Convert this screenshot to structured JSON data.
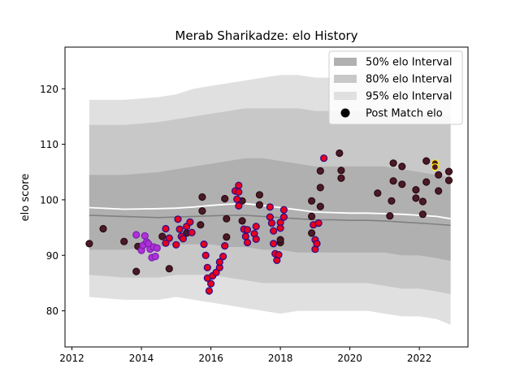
{
  "chart_data": {
    "type": "scatter",
    "title": "Merab Sharikadze: elo History",
    "xlabel": "",
    "ylabel": "elo score",
    "xlim": [
      2011.8,
      2023.4
    ],
    "ylim": [
      73.5,
      127.5
    ],
    "x_ticks": [
      2012,
      2014,
      2016,
      2018,
      2020,
      2022
    ],
    "x_tick_labels": [
      "2012",
      "2014",
      "2016",
      "2018",
      "2020",
      "2022"
    ],
    "y_ticks": [
      80,
      90,
      100,
      110,
      120
    ],
    "y_tick_labels": [
      "80",
      "90",
      "100",
      "110",
      "120"
    ],
    "legend": {
      "position": "top-right",
      "items": [
        {
          "label": "50% elo Interval",
          "kind": "patch",
          "color": "#b0b0b0"
        },
        {
          "label": "80% elo Interval",
          "kind": "patch",
          "color": "#c8c8c8"
        },
        {
          "label": "95% elo Interval",
          "kind": "patch",
          "color": "#e0e0e0"
        },
        {
          "label": "Post Match elo",
          "kind": "marker",
          "color": "#000000"
        }
      ]
    },
    "bands": {
      "x": [
        2012.5,
        2013.5,
        2014.5,
        2015.0,
        2015.5,
        2016.0,
        2016.5,
        2017.0,
        2017.5,
        2018.0,
        2018.5,
        2019.0,
        2019.5,
        2020.0,
        2020.5,
        2021.0,
        2021.5,
        2022.0,
        2022.5,
        2022.9
      ],
      "p95_low": [
        82.5,
        82.0,
        82.0,
        82.5,
        82.0,
        81.5,
        81.0,
        80.5,
        80.0,
        79.5,
        80.0,
        80.0,
        80.0,
        80.0,
        80.0,
        79.5,
        79.0,
        79.0,
        78.5,
        77.5
      ],
      "p95_high": [
        118.0,
        118.0,
        118.5,
        119.0,
        120.0,
        120.5,
        121.0,
        121.5,
        122.0,
        122.5,
        122.5,
        122.0,
        122.0,
        122.0,
        122.0,
        122.5,
        123.0,
        123.0,
        123.0,
        123.0
      ],
      "p80_low": [
        86.5,
        86.0,
        86.0,
        86.5,
        86.5,
        86.5,
        86.0,
        85.5,
        85.0,
        85.0,
        85.0,
        85.0,
        85.0,
        85.0,
        85.0,
        84.5,
        84.0,
        84.0,
        83.5,
        83.0
      ],
      "p80_high": [
        113.5,
        113.5,
        114.0,
        114.5,
        115.0,
        115.5,
        116.0,
        116.5,
        116.5,
        116.5,
        116.5,
        116.0,
        116.0,
        116.0,
        116.0,
        116.0,
        116.0,
        115.5,
        115.5,
        115.0
      ],
      "p50_low": [
        91.0,
        91.0,
        91.5,
        92.0,
        92.0,
        92.0,
        91.5,
        91.5,
        91.0,
        91.0,
        90.5,
        90.5,
        90.5,
        90.5,
        90.5,
        90.5,
        90.0,
        90.0,
        89.5,
        89.0
      ],
      "p50_high": [
        104.5,
        104.5,
        105.0,
        105.5,
        106.0,
        106.5,
        107.0,
        107.5,
        107.5,
        107.0,
        106.5,
        106.0,
        106.0,
        106.0,
        106.0,
        106.0,
        105.5,
        105.0,
        104.5,
        104.0
      ],
      "median": [
        97.2,
        97.0,
        96.8,
        96.9,
        97.0,
        97.1,
        97.2,
        97.2,
        97.0,
        96.8,
        96.6,
        96.4,
        96.4,
        96.3,
        96.3,
        96.2,
        96.0,
        95.8,
        95.6,
        95.4
      ],
      "mean": [
        98.6,
        98.3,
        98.4,
        98.5,
        98.7,
        99.0,
        99.2,
        99.3,
        99.0,
        98.6,
        98.2,
        97.8,
        97.7,
        97.6,
        97.6,
        97.5,
        97.4,
        97.2,
        97.0,
        96.6
      ]
    },
    "series": [
      {
        "name": "Post Match elo (dark)",
        "fill": "#4a1a26",
        "stroke": "#2a0a12",
        "points": [
          [
            2012.5,
            92.1
          ],
          [
            2012.9,
            94.8
          ],
          [
            2013.5,
            92.5
          ],
          [
            2013.85,
            87.1
          ],
          [
            2013.9,
            91.6
          ],
          [
            2014.6,
            93.4
          ],
          [
            2014.8,
            87.6
          ],
          [
            2015.3,
            94.0
          ],
          [
            2015.7,
            95.5
          ],
          [
            2015.75,
            100.5
          ],
          [
            2015.75,
            98.0
          ],
          [
            2016.4,
            100.2
          ],
          [
            2016.45,
            96.6
          ],
          [
            2016.45,
            93.3
          ],
          [
            2016.9,
            99.8
          ],
          [
            2016.9,
            96.2
          ],
          [
            2017.4,
            100.9
          ],
          [
            2017.4,
            99.1
          ],
          [
            2018.0,
            92.3
          ],
          [
            2018.0,
            92.8
          ],
          [
            2018.9,
            99.8
          ],
          [
            2018.9,
            94.0
          ],
          [
            2018.9,
            97.0
          ],
          [
            2019.15,
            102.2
          ],
          [
            2019.15,
            98.8
          ],
          [
            2019.15,
            105.2
          ],
          [
            2019.7,
            108.4
          ],
          [
            2019.75,
            105.3
          ],
          [
            2019.75,
            103.9
          ],
          [
            2020.8,
            101.2
          ],
          [
            2021.15,
            97.1
          ],
          [
            2021.2,
            99.8
          ],
          [
            2021.25,
            103.4
          ],
          [
            2021.25,
            106.6
          ],
          [
            2021.5,
            106.0
          ],
          [
            2021.5,
            102.8
          ],
          [
            2021.9,
            101.8
          ],
          [
            2021.9,
            100.3
          ],
          [
            2022.1,
            99.7
          ],
          [
            2022.1,
            97.4
          ],
          [
            2022.2,
            103.2
          ],
          [
            2022.2,
            107.0
          ],
          [
            2022.55,
            104.5
          ],
          [
            2022.55,
            101.6
          ],
          [
            2022.85,
            105.1
          ],
          [
            2022.85,
            103.5
          ]
        ]
      },
      {
        "name": "Post Match elo (red)",
        "fill": "#e8001c",
        "stroke": "#2a0a8a",
        "points": [
          [
            2014.7,
            94.8
          ],
          [
            2014.7,
            92.2
          ],
          [
            2014.8,
            93.1
          ],
          [
            2015.0,
            91.9
          ],
          [
            2015.05,
            96.5
          ],
          [
            2015.1,
            94.7
          ],
          [
            2015.15,
            93.4
          ],
          [
            2015.2,
            93.0
          ],
          [
            2015.3,
            95.2
          ],
          [
            2015.4,
            96.0
          ],
          [
            2015.45,
            94.1
          ],
          [
            2015.8,
            92.0
          ],
          [
            2015.85,
            90.0
          ],
          [
            2015.9,
            87.8
          ],
          [
            2015.9,
            85.9
          ],
          [
            2015.95,
            83.6
          ],
          [
            2016.0,
            84.9
          ],
          [
            2016.05,
            86.3
          ],
          [
            2016.15,
            86.9
          ],
          [
            2016.25,
            87.8
          ],
          [
            2016.25,
            88.8
          ],
          [
            2016.35,
            89.8
          ],
          [
            2016.4,
            91.7
          ],
          [
            2016.7,
            101.6
          ],
          [
            2016.75,
            100.1
          ],
          [
            2016.8,
            102.6
          ],
          [
            2016.8,
            101.4
          ],
          [
            2016.8,
            98.9
          ],
          [
            2016.95,
            94.7
          ],
          [
            2017.0,
            93.4
          ],
          [
            2017.05,
            92.3
          ],
          [
            2017.05,
            94.6
          ],
          [
            2017.25,
            93.9
          ],
          [
            2017.3,
            92.9
          ],
          [
            2017.3,
            95.2
          ],
          [
            2017.7,
            98.7
          ],
          [
            2017.7,
            96.9
          ],
          [
            2017.75,
            95.8
          ],
          [
            2017.8,
            94.4
          ],
          [
            2017.8,
            92.1
          ],
          [
            2017.85,
            90.3
          ],
          [
            2017.9,
            89.1
          ],
          [
            2017.95,
            90.1
          ],
          [
            2018.0,
            95.9
          ],
          [
            2018.0,
            94.9
          ],
          [
            2018.1,
            96.9
          ],
          [
            2018.1,
            98.2
          ],
          [
            2018.95,
            95.5
          ],
          [
            2019.0,
            92.8
          ],
          [
            2019.0,
            91.1
          ],
          [
            2019.05,
            92.1
          ],
          [
            2019.1,
            95.8
          ],
          [
            2019.25,
            107.5
          ]
        ]
      },
      {
        "name": "Post Match elo (purple)",
        "fill": "#b030d8",
        "stroke": "#7a20b0",
        "points": [
          [
            2013.85,
            93.7
          ],
          [
            2014.0,
            90.9
          ],
          [
            2014.05,
            91.8
          ],
          [
            2014.1,
            93.5
          ],
          [
            2014.15,
            92.4
          ],
          [
            2014.2,
            92.1
          ],
          [
            2014.25,
            91.1
          ],
          [
            2014.3,
            89.6
          ],
          [
            2014.35,
            91.5
          ],
          [
            2014.4,
            89.8
          ],
          [
            2014.45,
            91.3
          ]
        ]
      },
      {
        "name": "Post Match elo (latest)",
        "fill": "#4a1a26",
        "stroke": "#ffe800",
        "points": [
          [
            2022.45,
            106.6
          ],
          [
            2022.45,
            105.9
          ]
        ]
      }
    ]
  }
}
